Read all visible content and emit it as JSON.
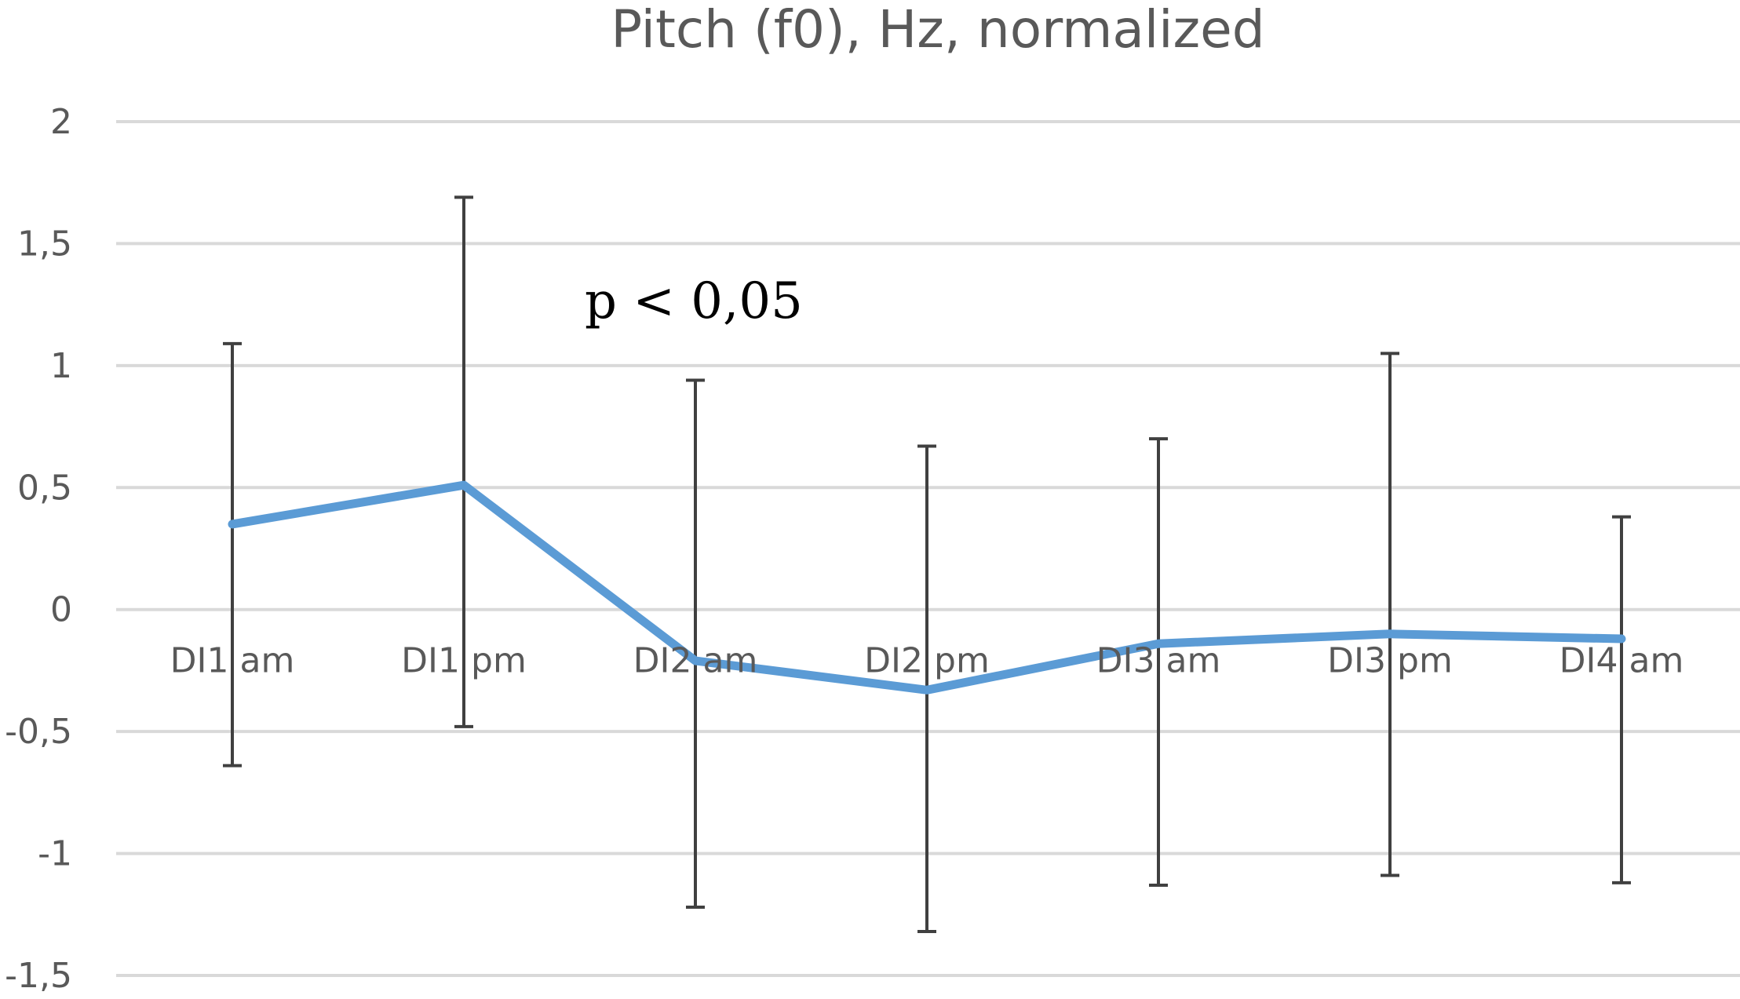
{
  "chart_data": {
    "type": "line",
    "title": "Pitch (f0), Hz, normalized",
    "xlabel": "",
    "ylabel": "",
    "categories": [
      "DI1 am",
      "DI1 pm",
      "DI2 am",
      "DI2 pm",
      "DI3 am",
      "DI3 pm",
      "DI4 am"
    ],
    "series": [
      {
        "values": [
          0.35,
          0.51,
          -0.21,
          -0.33,
          -0.14,
          -0.1,
          -0.12
        ],
        "error_upper": [
          1.09,
          1.69,
          0.94,
          0.67,
          0.7,
          1.05,
          0.38
        ],
        "error_lower": [
          -0.64,
          -0.48,
          -1.22,
          -1.32,
          -1.13,
          -1.09,
          -1.12
        ],
        "color": "#5b9bd5"
      }
    ],
    "ylim": [
      -1.5,
      2
    ],
    "yticks": [
      "2",
      "1,5",
      "1",
      "0,5",
      "0",
      "-0,5",
      "-1",
      "-1,5"
    ],
    "ytick_values": [
      2,
      1.5,
      1,
      0.5,
      0,
      -0.5,
      -1,
      -1.5
    ],
    "grid": true,
    "legend": "none",
    "annotations": [
      {
        "text": "p < 0,05"
      }
    ]
  }
}
